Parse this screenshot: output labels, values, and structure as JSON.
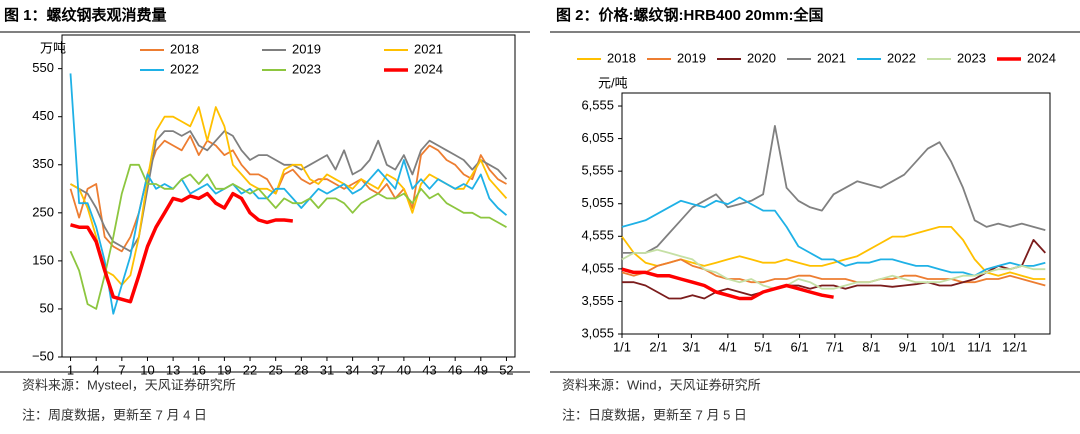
{
  "chart_data": [
    {
      "type": "line",
      "title": "图 1：螺纹钢表观消费量",
      "y_label": "万吨",
      "source": "资料来源：Mysteel，天风证券研究所",
      "note": "注：周度数据，更新至 7 月 4 日",
      "x": [
        1,
        2,
        3,
        4,
        5,
        6,
        7,
        8,
        9,
        10,
        11,
        12,
        13,
        14,
        15,
        16,
        17,
        18,
        19,
        20,
        21,
        22,
        23,
        24,
        25,
        26,
        27,
        28,
        29,
        30,
        31,
        32,
        33,
        34,
        35,
        36,
        37,
        38,
        39,
        40,
        41,
        42,
        43,
        44,
        45,
        46,
        47,
        48,
        49,
        50,
        51,
        52
      ],
      "xlim": [
        0,
        53
      ],
      "xticks": [
        1,
        4,
        7,
        10,
        13,
        16,
        19,
        22,
        25,
        28,
        31,
        34,
        37,
        40,
        43,
        46,
        49,
        52
      ],
      "ylim": [
        -50,
        620
      ],
      "yticks": [
        {
          "value": -50,
          "label": "−50"
        },
        50,
        150,
        250,
        350,
        450,
        550
      ],
      "series": [
        {
          "name": "2018",
          "color": "#ed7d31",
          "values": [
            300,
            240,
            300,
            310,
            200,
            180,
            170,
            200,
            250,
            330,
            380,
            400,
            390,
            380,
            410,
            370,
            400,
            390,
            370,
            380,
            350,
            330,
            330,
            320,
            290,
            330,
            340,
            320,
            310,
            320,
            320,
            310,
            300,
            310,
            320,
            300,
            290,
            310,
            280,
            300,
            260,
            370,
            390,
            380,
            360,
            350,
            330,
            320,
            370,
            340,
            320,
            310
          ]
        },
        {
          "name": "2019",
          "color": "#7f7f7f",
          "values": [
            310,
            300,
            290,
            260,
            220,
            190,
            180,
            170,
            200,
            300,
            400,
            420,
            420,
            410,
            420,
            390,
            380,
            400,
            420,
            410,
            380,
            360,
            370,
            370,
            360,
            350,
            350,
            340,
            350,
            360,
            370,
            340,
            380,
            330,
            340,
            360,
            400,
            350,
            340,
            370,
            330,
            380,
            400,
            390,
            380,
            370,
            360,
            340,
            360,
            350,
            340,
            320
          ]
        },
        {
          "name": "2021",
          "color": "#ffc000",
          "values": [
            310,
            300,
            260,
            200,
            130,
            120,
            100,
            120,
            200,
            320,
            420,
            450,
            450,
            440,
            430,
            470,
            400,
            470,
            430,
            350,
            330,
            310,
            300,
            300,
            290,
            340,
            350,
            350,
            320,
            310,
            330,
            320,
            310,
            300,
            320,
            310,
            300,
            330,
            320,
            300,
            250,
            310,
            330,
            320,
            310,
            300,
            300,
            330,
            360,
            320,
            300,
            280
          ]
        },
        {
          "name": "2022",
          "color": "#1fb1e6",
          "values": [
            540,
            270,
            270,
            220,
            150,
            40,
            100,
            160,
            250,
            330,
            300,
            310,
            300,
            320,
            290,
            300,
            310,
            290,
            300,
            310,
            290,
            300,
            280,
            280,
            300,
            300,
            280,
            260,
            280,
            300,
            290,
            300,
            310,
            290,
            300,
            320,
            340,
            320,
            300,
            360,
            300,
            320,
            300,
            320,
            310,
            300,
            310,
            300,
            330,
            280,
            260,
            245
          ]
        },
        {
          "name": "2023",
          "color": "#8dc63f",
          "values": [
            170,
            130,
            60,
            50,
            120,
            200,
            290,
            350,
            350,
            310,
            310,
            300,
            300,
            320,
            330,
            310,
            330,
            300,
            300,
            310,
            300,
            290,
            300,
            280,
            260,
            280,
            270,
            270,
            280,
            260,
            280,
            280,
            270,
            250,
            270,
            280,
            290,
            280,
            280,
            290,
            270,
            300,
            280,
            290,
            270,
            260,
            250,
            250,
            240,
            240,
            230,
            220
          ]
        },
        {
          "name": "2024",
          "color": "#ff0000",
          "width": 3.5,
          "values": [
            225,
            220,
            220,
            190,
            130,
            75,
            70,
            65,
            120,
            180,
            220,
            250,
            280,
            275,
            285,
            280,
            290,
            270,
            260,
            290,
            280,
            250,
            235,
            230,
            235,
            235,
            233,
            null,
            null,
            null,
            null,
            null,
            null,
            null,
            null,
            null,
            null,
            null,
            null,
            null,
            null,
            null,
            null,
            null,
            null,
            null,
            null,
            null,
            null,
            null,
            null,
            null
          ]
        }
      ]
    },
    {
      "type": "line",
      "title": "图 2：价格:螺纹钢:HRB400 20mm:全国",
      "y_label": "元/吨",
      "source": "资料来源：Wind，天风证券研究所",
      "note": "注：日度数据，更新至 7 月 5 日",
      "x": [
        1,
        11,
        21,
        31,
        41,
        51,
        61,
        71,
        81,
        91,
        101,
        111,
        121,
        131,
        141,
        151,
        161,
        171,
        181,
        191,
        201,
        211,
        221,
        231,
        241,
        251,
        261,
        271,
        281,
        291,
        301,
        311,
        321,
        331,
        341,
        351,
        361
      ],
      "xlim": [
        1,
        365
      ],
      "xticks": [
        {
          "value": 1,
          "label": "1/1"
        },
        {
          "value": 32,
          "label": "2/1"
        },
        {
          "value": 60,
          "label": "3/1"
        },
        {
          "value": 91,
          "label": "4/1"
        },
        {
          "value": 121,
          "label": "5/1"
        },
        {
          "value": 152,
          "label": "6/1"
        },
        {
          "value": 182,
          "label": "7/1"
        },
        {
          "value": 213,
          "label": "8/1"
        },
        {
          "value": 244,
          "label": "9/1"
        },
        {
          "value": 274,
          "label": "10/1"
        },
        {
          "value": 305,
          "label": "11/1"
        },
        {
          "value": 335,
          "label": "12/1"
        }
      ],
      "ylim": [
        3055,
        6755
      ],
      "yticks": [
        {
          "value": 3055,
          "label": "3,055"
        },
        {
          "value": 3555,
          "label": "3,555"
        },
        {
          "value": 4055,
          "label": "4,055"
        },
        {
          "value": 4555,
          "label": "4,555"
        },
        {
          "value": 5055,
          "label": "5,055"
        },
        {
          "value": 5555,
          "label": "5,555"
        },
        {
          "value": 6055,
          "label": "6,055"
        },
        {
          "value": 6555,
          "label": "6,555"
        }
      ],
      "series": [
        {
          "name": "2018",
          "color": "#ffc000",
          "values": [
            4550,
            4300,
            4150,
            4100,
            4150,
            4200,
            4150,
            4100,
            4150,
            4200,
            4250,
            4200,
            4150,
            4150,
            4200,
            4150,
            4100,
            4100,
            4150,
            4200,
            4250,
            4350,
            4450,
            4550,
            4550,
            4600,
            4650,
            4700,
            4700,
            4500,
            4200,
            4000,
            3950,
            4000,
            3950,
            3900,
            3900
          ]
        },
        {
          "name": "2019",
          "color": "#ed7d31",
          "values": [
            4000,
            3950,
            4000,
            4100,
            4150,
            4200,
            4100,
            4050,
            3950,
            3900,
            3900,
            3850,
            3850,
            3900,
            3900,
            3950,
            3950,
            3900,
            3900,
            3900,
            3850,
            3850,
            3900,
            3900,
            3950,
            3950,
            3900,
            3900,
            3900,
            3850,
            3850,
            3900,
            3900,
            3950,
            3900,
            3850,
            3800
          ]
        },
        {
          "name": "2020",
          "color": "#7b1c1c",
          "values": [
            3850,
            3850,
            3800,
            3700,
            3600,
            3600,
            3650,
            3600,
            3700,
            3750,
            3700,
            3650,
            3700,
            3750,
            3800,
            3800,
            3750,
            3800,
            3800,
            3750,
            3800,
            3800,
            3800,
            3780,
            3800,
            3820,
            3850,
            3800,
            3800,
            3850,
            3900,
            4000,
            4100,
            4050,
            4100,
            4500,
            4300
          ]
        },
        {
          "name": "2021",
          "color": "#808080",
          "values": [
            4300,
            4300,
            4300,
            4400,
            4600,
            4800,
            5000,
            5100,
            5200,
            5000,
            5050,
            5100,
            5200,
            6250,
            5300,
            5100,
            5000,
            4950,
            5200,
            5300,
            5400,
            5350,
            5300,
            5400,
            5500,
            5700,
            5900,
            6000,
            5700,
            5300,
            4800,
            4700,
            4750,
            4700,
            4750,
            4700,
            4650
          ]
        },
        {
          "name": "2022",
          "color": "#1fb1e6",
          "values": [
            4700,
            4750,
            4800,
            4900,
            5000,
            5100,
            5050,
            5000,
            5100,
            5050,
            5150,
            5050,
            4950,
            4950,
            4700,
            4400,
            4300,
            4200,
            4200,
            4100,
            4150,
            4150,
            4200,
            4200,
            4150,
            4100,
            4100,
            4050,
            4000,
            4000,
            3950,
            4050,
            4100,
            4150,
            4100,
            4100,
            4150
          ]
        },
        {
          "name": "2023",
          "color": "#c5e0a5",
          "values": [
            4200,
            4300,
            4300,
            4350,
            4300,
            4250,
            4200,
            4050,
            4000,
            3900,
            3850,
            3900,
            3800,
            3750,
            3800,
            3900,
            3850,
            3750,
            3750,
            3800,
            3850,
            3850,
            3900,
            3950,
            3900,
            3850,
            3850,
            3850,
            3900,
            3950,
            3950,
            4000,
            4050,
            4050,
            4100,
            4050,
            4050
          ]
        },
        {
          "name": "2024",
          "color": "#ff0000",
          "width": 3.5,
          "values": [
            4050,
            4000,
            4000,
            3950,
            3950,
            3900,
            3850,
            3800,
            3700,
            3650,
            3600,
            3600,
            3700,
            3750,
            3800,
            3750,
            3700,
            3650,
            3620,
            null,
            null,
            null,
            null,
            null,
            null,
            null,
            null,
            null,
            null,
            null,
            null,
            null,
            null,
            null,
            null,
            null,
            null
          ]
        }
      ]
    }
  ]
}
